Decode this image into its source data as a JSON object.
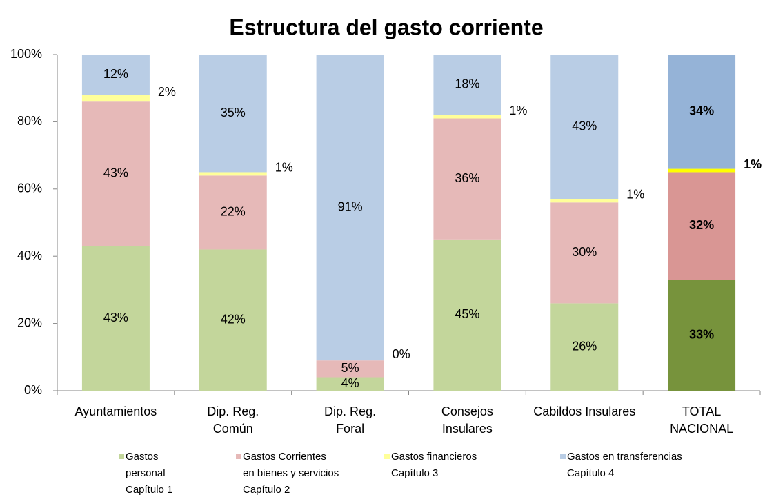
{
  "chart_data": {
    "type": "stacked_bar_100",
    "title": "Estructura del gasto corriente",
    "categories": [
      [
        "Ayuntamientos"
      ],
      [
        "Dip. Reg.",
        "Común"
      ],
      [
        "Dip. Reg.",
        "Foral"
      ],
      [
        "Consejos",
        "Insulares"
      ],
      [
        "Cabildos Insulares"
      ],
      [
        "TOTAL",
        "NACIONAL"
      ]
    ],
    "series": [
      {
        "name": [
          "Gastos",
          "personal",
          "Capítulo 1"
        ],
        "color": "#c3d69b",
        "colors": [
          "#c3d69b",
          "#c3d69b",
          "#c3d69b",
          "#c3d69b",
          "#c3d69b",
          "#77933c"
        ],
        "values": [
          43,
          42,
          4,
          45,
          26,
          33
        ],
        "value_labels": [
          "43%",
          "42%",
          "4%",
          "45%",
          "26%",
          "33%"
        ]
      },
      {
        "name": [
          "Gastos Corrientes",
          "en bienes y servicios",
          "Capítulo 2"
        ],
        "color": "#e6b9b8",
        "colors": [
          "#e6b9b8",
          "#e6b9b8",
          "#e6b9b8",
          "#e6b9b8",
          "#e6b9b8",
          "#d99694"
        ],
        "values": [
          43,
          22,
          5,
          36,
          30,
          32
        ],
        "value_labels": [
          "43%",
          "22%",
          "5%",
          "36%",
          "30%",
          "32%"
        ]
      },
      {
        "name": [
          "Gastos financieros",
          "Capítulo 3"
        ],
        "color": "#ffff99",
        "colors": [
          "#ffff99",
          "#ffff99",
          "#ffff99",
          "#ffff99",
          "#ffff99",
          "#ffff00"
        ],
        "values": [
          2,
          1,
          0,
          1,
          1,
          1
        ],
        "value_labels": [
          "2%",
          "1%",
          "0%",
          "1%",
          "1%",
          "1%"
        ]
      },
      {
        "name": [
          "Gastos en transferencias",
          "Capítulo 4"
        ],
        "color": "#b9cde5",
        "colors": [
          "#b9cde5",
          "#b9cde5",
          "#b9cde5",
          "#b9cde5",
          "#b9cde5",
          "#95b3d7"
        ],
        "values": [
          12,
          35,
          91,
          18,
          43,
          34
        ],
        "value_labels": [
          "12%",
          "35%",
          "91%",
          "18%",
          "43%",
          "34%"
        ]
      }
    ],
    "bold_labels": [
      false,
      false,
      false,
      false,
      false,
      true
    ],
    "ylim": [
      0,
      100
    ],
    "yticks": [
      {
        "value": 0,
        "label": "0%"
      },
      {
        "value": 20,
        "label": "20%"
      },
      {
        "value": 40,
        "label": "40%"
      },
      {
        "value": 60,
        "label": "60%"
      },
      {
        "value": 80,
        "label": "80%"
      },
      {
        "value": 100,
        "label": "100%"
      }
    ],
    "grid": false,
    "legend": "bottom"
  }
}
